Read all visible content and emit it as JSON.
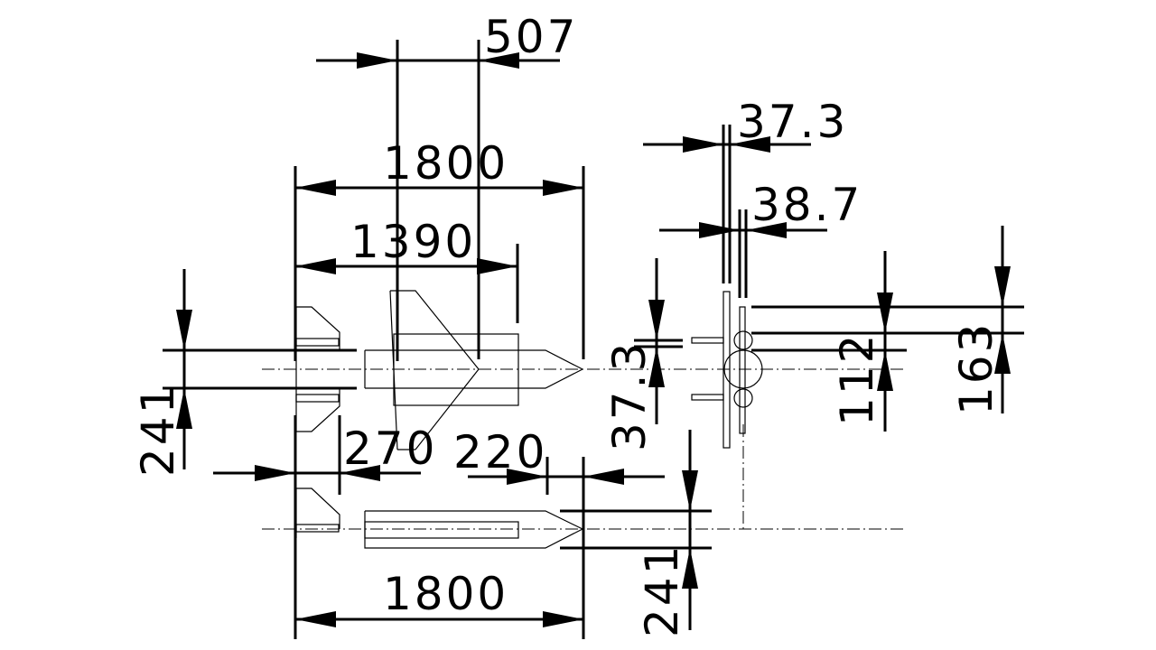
{
  "dimensions": {
    "top_507": "507",
    "top_1800": "1800",
    "mid_1390": "1390",
    "left_241": "241",
    "gap_270": "270",
    "gap_220": "220",
    "bottom_1800": "1800",
    "bottom_241": "241",
    "side_37_3_vertical": "37.3",
    "side_37_3_top": "37.3",
    "side_38_7": "38.7",
    "side_112": "112",
    "side_163": "163"
  }
}
